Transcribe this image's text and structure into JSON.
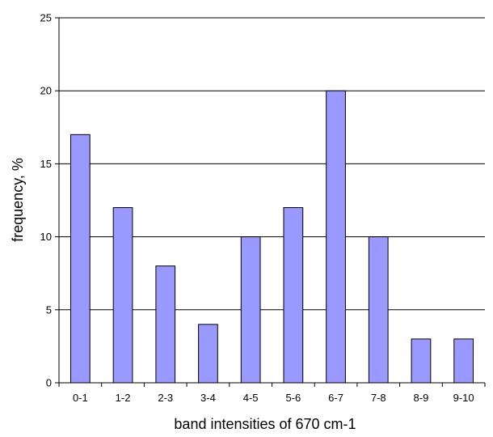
{
  "chart_data": {
    "type": "bar",
    "title": "",
    "xlabel": "band intensities of 670 cm-1",
    "ylabel": "frequency, %",
    "categories": [
      "0-1",
      "1-2",
      "2-3",
      "3-4",
      "4-5",
      "5-6",
      "6-7",
      "7-8",
      "8-9",
      "9-10"
    ],
    "values": [
      17,
      12,
      8,
      4,
      10,
      12,
      20,
      10,
      3,
      3
    ],
    "ylim": [
      0,
      25
    ],
    "yticks": [
      0,
      5,
      10,
      15,
      20,
      25
    ],
    "grid": true,
    "legend": "none",
    "colors": {
      "bar_fill": "#9999ff",
      "bar_stroke": "#000000",
      "grid": "#000000",
      "axis": "#000000"
    }
  }
}
